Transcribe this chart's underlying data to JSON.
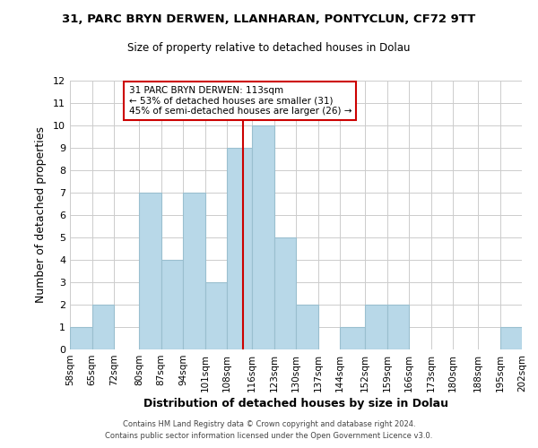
{
  "title": "31, PARC BRYN DERWEN, LLANHARAN, PONTYCLUN, CF72 9TT",
  "subtitle": "Size of property relative to detached houses in Dolau",
  "xlabel": "Distribution of detached houses by size in Dolau",
  "ylabel": "Number of detached properties",
  "bar_color": "#b8d8e8",
  "bar_edgecolor": "#9abfcf",
  "bins": [
    "58sqm",
    "65sqm",
    "72sqm",
    "80sqm",
    "87sqm",
    "94sqm",
    "101sqm",
    "108sqm",
    "116sqm",
    "123sqm",
    "130sqm",
    "137sqm",
    "144sqm",
    "152sqm",
    "159sqm",
    "166sqm",
    "173sqm",
    "180sqm",
    "188sqm",
    "195sqm",
    "202sqm"
  ],
  "bin_edges": [
    58,
    65,
    72,
    80,
    87,
    94,
    101,
    108,
    116,
    123,
    130,
    137,
    144,
    152,
    159,
    166,
    173,
    180,
    188,
    195,
    202
  ],
  "counts": [
    1,
    2,
    0,
    7,
    4,
    7,
    3,
    9,
    10,
    5,
    2,
    0,
    1,
    2,
    2,
    0,
    0,
    0,
    0,
    1
  ],
  "ylim": [
    0,
    12
  ],
  "yticks": [
    0,
    1,
    2,
    3,
    4,
    5,
    6,
    7,
    8,
    9,
    10,
    11,
    12
  ],
  "property_line_x": 113,
  "property_line_color": "#cc0000",
  "annotation_title": "31 PARC BRYN DERWEN: 113sqm",
  "annotation_line1": "← 53% of detached houses are smaller (31)",
  "annotation_line2": "45% of semi-detached houses are larger (26) →",
  "annotation_box_edgecolor": "#cc0000",
  "annotation_box_facecolor": "#ffffff",
  "footer1": "Contains HM Land Registry data © Crown copyright and database right 2024.",
  "footer2": "Contains public sector information licensed under the Open Government Licence v3.0.",
  "background_color": "#ffffff",
  "grid_color": "#cccccc"
}
